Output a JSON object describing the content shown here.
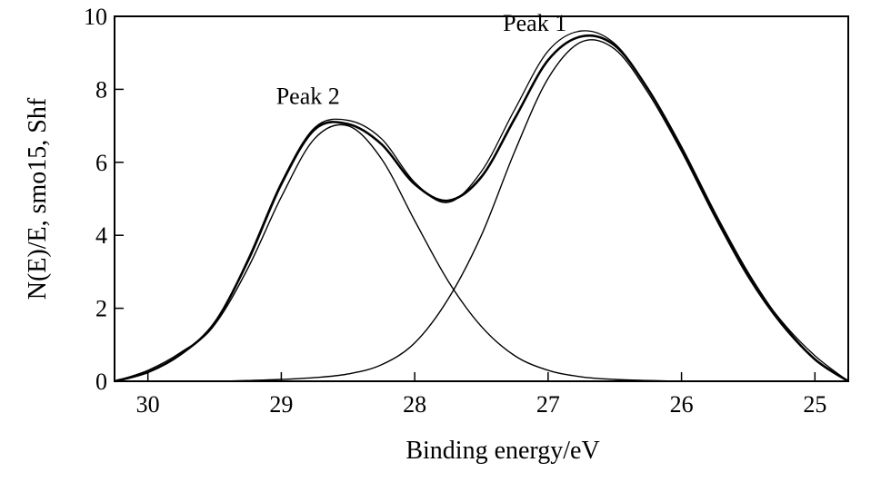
{
  "chart_data": {
    "type": "line",
    "title": "",
    "xlabel": "Binding energy/eV",
    "ylabel": "N(E)/E, smo15, Shf",
    "xlim": [
      30.25,
      24.75
    ],
    "ylim": [
      0,
      10
    ],
    "x_reversed": true,
    "grid": false,
    "legend": "none",
    "xticks": [
      30,
      29,
      28,
      27,
      26,
      25
    ],
    "yticks": [
      0,
      2,
      4,
      6,
      8,
      10
    ],
    "annotations": [
      {
        "text": "Peak 1",
        "x": 27.1,
        "y": 9.6
      },
      {
        "text": "Peak 2",
        "x": 28.8,
        "y": 7.6
      }
    ],
    "series": [
      {
        "x": [
          30.25,
          30.0,
          29.75,
          29.5,
          29.25,
          29.0,
          28.75,
          28.5,
          28.25,
          28.0,
          27.75,
          27.5,
          27.25,
          27.0,
          26.75,
          26.5,
          26.25,
          26.0,
          25.75,
          25.5,
          25.25,
          25.0,
          24.75
        ],
        "values": [
          0.0,
          0.25,
          0.75,
          1.6,
          3.3,
          5.4,
          6.9,
          7.05,
          6.5,
          5.4,
          4.95,
          5.6,
          7.2,
          8.8,
          9.45,
          9.2,
          8.0,
          6.4,
          4.6,
          2.95,
          1.6,
          0.6,
          0.0
        ]
      },
      {
        "x": [
          30.25,
          30.0,
          29.75,
          29.5,
          29.25,
          29.0,
          28.75,
          28.5,
          28.25,
          28.0,
          27.75,
          27.5,
          27.25,
          27.0,
          26.75,
          26.5,
          26.25,
          26.0,
          25.75,
          25.5,
          25.25,
          25.0,
          24.75
        ],
        "values": [
          0.0,
          0.3,
          0.8,
          1.55,
          3.35,
          5.45,
          6.95,
          7.15,
          6.65,
          5.45,
          4.9,
          5.75,
          7.45,
          9.05,
          9.6,
          9.25,
          8.0,
          6.35,
          4.55,
          2.9,
          1.65,
          0.7,
          0.0
        ]
      },
      {
        "x": [
          30.25,
          30.0,
          29.75,
          29.5,
          29.25,
          29.0,
          28.75,
          28.5,
          28.25,
          28.0,
          27.75,
          27.5,
          27.25,
          27.0,
          26.75,
          26.5,
          26.25,
          26.0,
          25.75,
          25.5,
          25.25,
          25.0,
          24.75
        ],
        "values": [
          0.0,
          0.25,
          0.75,
          1.55,
          3.1,
          5.05,
          6.65,
          7.0,
          6.1,
          4.4,
          2.75,
          1.5,
          0.7,
          0.3,
          0.12,
          0.05,
          0.02,
          0.0,
          0.0,
          0.0,
          0.0,
          0.0,
          0.0
        ]
      },
      {
        "x": [
          30.25,
          30.0,
          29.75,
          29.5,
          29.25,
          29.0,
          28.75,
          28.5,
          28.25,
          28.0,
          27.75,
          27.5,
          27.25,
          27.0,
          26.75,
          26.5,
          26.25,
          26.0,
          25.75,
          25.5,
          25.25,
          25.0,
          24.75
        ],
        "values": [
          0.0,
          0.0,
          0.0,
          0.0,
          0.02,
          0.05,
          0.1,
          0.2,
          0.45,
          1.05,
          2.25,
          4.0,
          6.3,
          8.3,
          9.3,
          9.1,
          7.9,
          6.3,
          4.5,
          2.85,
          1.55,
          0.6,
          0.0
        ]
      }
    ]
  }
}
